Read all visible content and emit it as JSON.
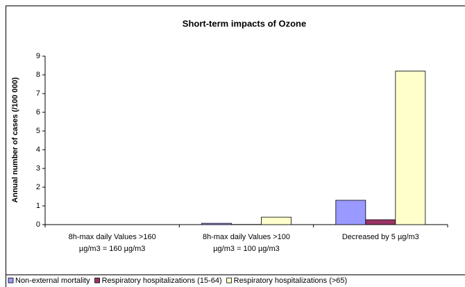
{
  "chart_data": {
    "type": "bar",
    "title": "Short-term impacts of Ozone",
    "y_label": "Annual number of cases (/100 000)",
    "categories": [
      "8h-max daily Values >160 µg/m3 = 160 µg/m3",
      "8h-max daily Values >100 µg/m3 = 100 µg/m3",
      "Decreased by 5 µg/m3"
    ],
    "series": [
      {
        "name": "Non-external mortality",
        "color": "#9999ff",
        "values": [
          0,
          0.07,
          1.3
        ]
      },
      {
        "name": "Respiratory hospitalizations (15-64)",
        "color": "#993366",
        "values": [
          0,
          0.01,
          0.26
        ]
      },
      {
        "name": "Respiratory hospitalizations (>65)",
        "color": "#ffffcc",
        "values": [
          0,
          0.4,
          8.2
        ]
      }
    ],
    "ylim": [
      0,
      9
    ],
    "yticks": [
      0,
      1,
      2,
      3,
      4,
      5,
      6,
      7,
      8,
      9
    ],
    "grid": false,
    "legend": "bottom"
  }
}
